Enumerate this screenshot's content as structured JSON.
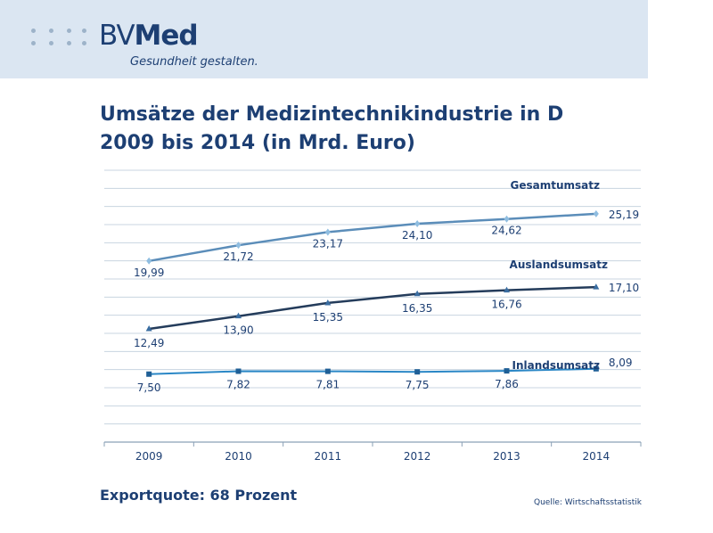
{
  "logo": {
    "part1": "BV",
    "part2": "Med",
    "tagline": "Gesundheit gestalten."
  },
  "title_line1": "Umsätze der Medizintechnikindustrie in D",
  "title_line2": "2009 bis 2014 (in Mrd. Euro)",
  "footer": "Exportquote: 68 Prozent",
  "source": "Quelle: Wirtschaftsstatistik",
  "colors": {
    "navy": "#1d3f73",
    "header_band": "#dbe6f2",
    "gesamt": "#5b8db9",
    "ausland": "#243c5b",
    "inland": "#2a87c6",
    "grid": "#c8d4e0"
  },
  "chart_data": {
    "type": "line",
    "categories": [
      "2009",
      "2010",
      "2011",
      "2012",
      "2013",
      "2014"
    ],
    "ylim": [
      0,
      30
    ],
    "grid": true,
    "series": [
      {
        "name": "Gesamtumsatz",
        "values": [
          19.99,
          21.72,
          23.17,
          24.1,
          24.62,
          25.19
        ],
        "labels": [
          "19,99",
          "21,72",
          "23,17",
          "24,10",
          "24,62",
          "25,19"
        ],
        "marker": "diamond",
        "color": "#5b8db9"
      },
      {
        "name": "Auslandsumsatz",
        "values": [
          12.49,
          13.9,
          15.35,
          16.35,
          16.76,
          17.1
        ],
        "labels": [
          "12,49",
          "13,90",
          "15,35",
          "16,35",
          "16,76",
          "17,10"
        ],
        "marker": "triangle",
        "color": "#243c5b"
      },
      {
        "name": "Inlandsumsatz",
        "values": [
          7.5,
          7.82,
          7.81,
          7.75,
          7.86,
          8.09
        ],
        "labels": [
          "7,50",
          "7,82",
          "7,81",
          "7,75",
          "7,86",
          "8,09"
        ],
        "marker": "square",
        "color": "#2a87c6"
      }
    ]
  }
}
